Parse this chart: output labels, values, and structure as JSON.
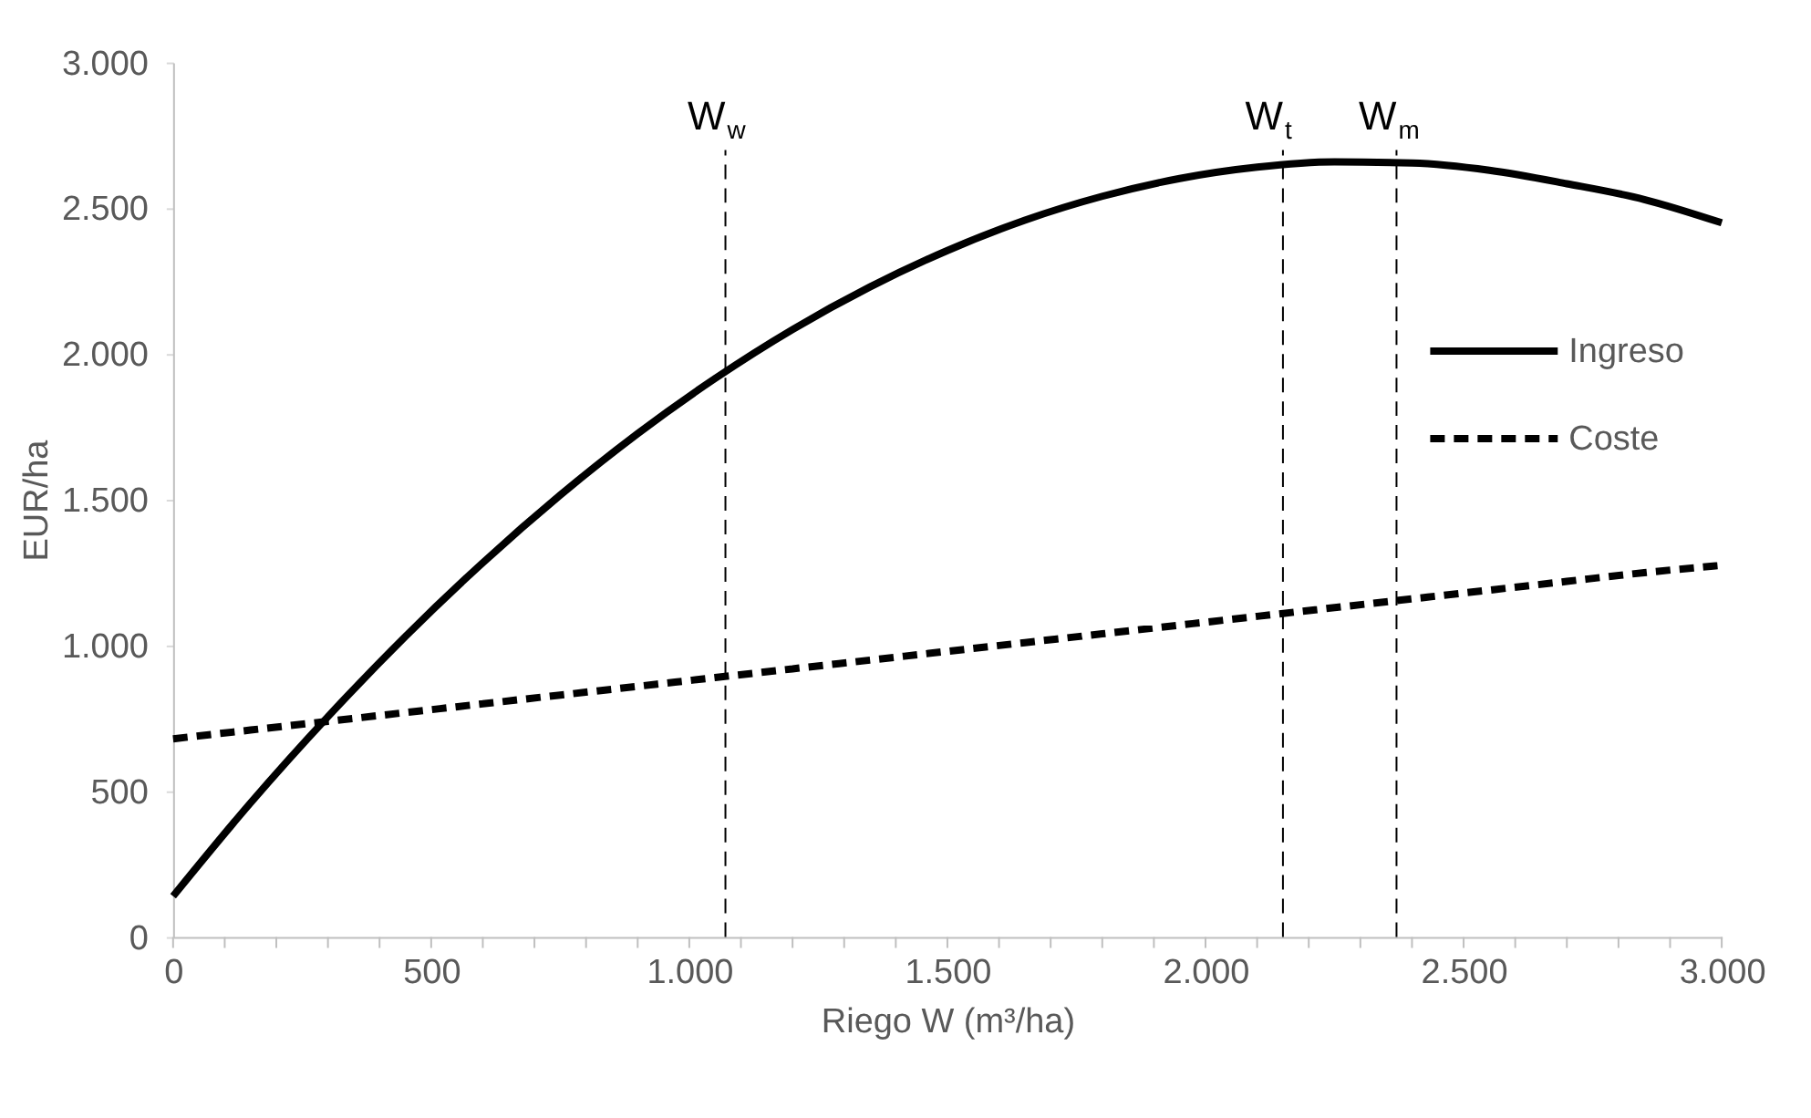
{
  "chart_data": {
    "type": "line",
    "xlabel": "Riego W (m³/ha)",
    "ylabel": "EUR/ha",
    "x": [
      0,
      150,
      300,
      450,
      600,
      750,
      900,
      1050,
      1200,
      1350,
      1500,
      1650,
      1800,
      1950,
      2100,
      2250,
      2400,
      2550,
      2700,
      2850,
      3000
    ],
    "series": [
      {
        "name": "Ingreso",
        "color": "#000000",
        "line_style": "solid",
        "values": [
          140,
          460,
          756,
          1031,
          1284,
          1516,
          1727,
          1916,
          2084,
          2230,
          2355,
          2459,
          2541,
          2602,
          2641,
          2659,
          2655,
          2630,
          2584,
          2530,
          2450
        ]
      },
      {
        "name": "Coste",
        "color": "#000000",
        "line_style": "dashed",
        "values": [
          680,
          710,
          740,
          770,
          800,
          830,
          860,
          890,
          920,
          950,
          980,
          1010,
          1040,
          1070,
          1100,
          1130,
          1160,
          1190,
          1220,
          1250,
          1275
        ]
      }
    ],
    "xlim": [
      0,
      3000
    ],
    "ylim": [
      0,
      3000
    ],
    "xticks": [
      0,
      {
        "value": 100,
        "label": null
      },
      {
        "value": 200,
        "label": null
      },
      {
        "value": 300,
        "label": null
      },
      {
        "value": 400,
        "label": null
      },
      {
        "value": 500,
        "label": "500"
      },
      {
        "value": 600,
        "label": null
      },
      {
        "value": 700,
        "label": null
      },
      {
        "value": 800,
        "label": null
      },
      {
        "value": 900,
        "label": null
      },
      {
        "value": 1000,
        "label": "1.000"
      },
      {
        "value": 1100,
        "label": null
      },
      {
        "value": 1200,
        "label": null
      },
      {
        "value": 1300,
        "label": null
      },
      {
        "value": 1400,
        "label": null
      },
      {
        "value": 1500,
        "label": "1.500"
      },
      {
        "value": 1600,
        "label": null
      },
      {
        "value": 1700,
        "label": null
      },
      {
        "value": 1800,
        "label": null
      },
      {
        "value": 1900,
        "label": null
      },
      {
        "value": 2000,
        "label": "2.000"
      },
      {
        "value": 2100,
        "label": null
      },
      {
        "value": 2200,
        "label": null
      },
      {
        "value": 2300,
        "label": null
      },
      {
        "value": 2400,
        "label": null
      },
      {
        "value": 2500,
        "label": "2.500"
      },
      {
        "value": 2600,
        "label": null
      },
      {
        "value": 2700,
        "label": null
      },
      {
        "value": 2800,
        "label": null
      },
      {
        "value": 2900,
        "label": null
      },
      {
        "value": 3000,
        "label": "3.000"
      }
    ],
    "yticks": [
      0,
      {
        "value": 500,
        "label": "500"
      },
      {
        "value": 1000,
        "label": "1.000"
      },
      {
        "value": 1500,
        "label": "1.500"
      },
      {
        "value": 2000,
        "label": "2.000"
      },
      {
        "value": 2500,
        "label": "2.500"
      },
      {
        "value": 3000,
        "label": "3.000"
      }
    ],
    "ref_lines": [
      {
        "axis": "x",
        "value": 1070,
        "label": "W$_{w}$",
        "line_style": "dashed",
        "color": "#000000"
      },
      {
        "axis": "x",
        "value": 2150,
        "label": "W$_{t}$",
        "line_style": "dashed",
        "color": "#000000"
      },
      {
        "axis": "x",
        "value": 2370,
        "label": "W$_{m}$",
        "line_style": "dashed",
        "color": "#000000"
      }
    ],
    "grid": false,
    "legend": "right",
    "marker": "none"
  }
}
